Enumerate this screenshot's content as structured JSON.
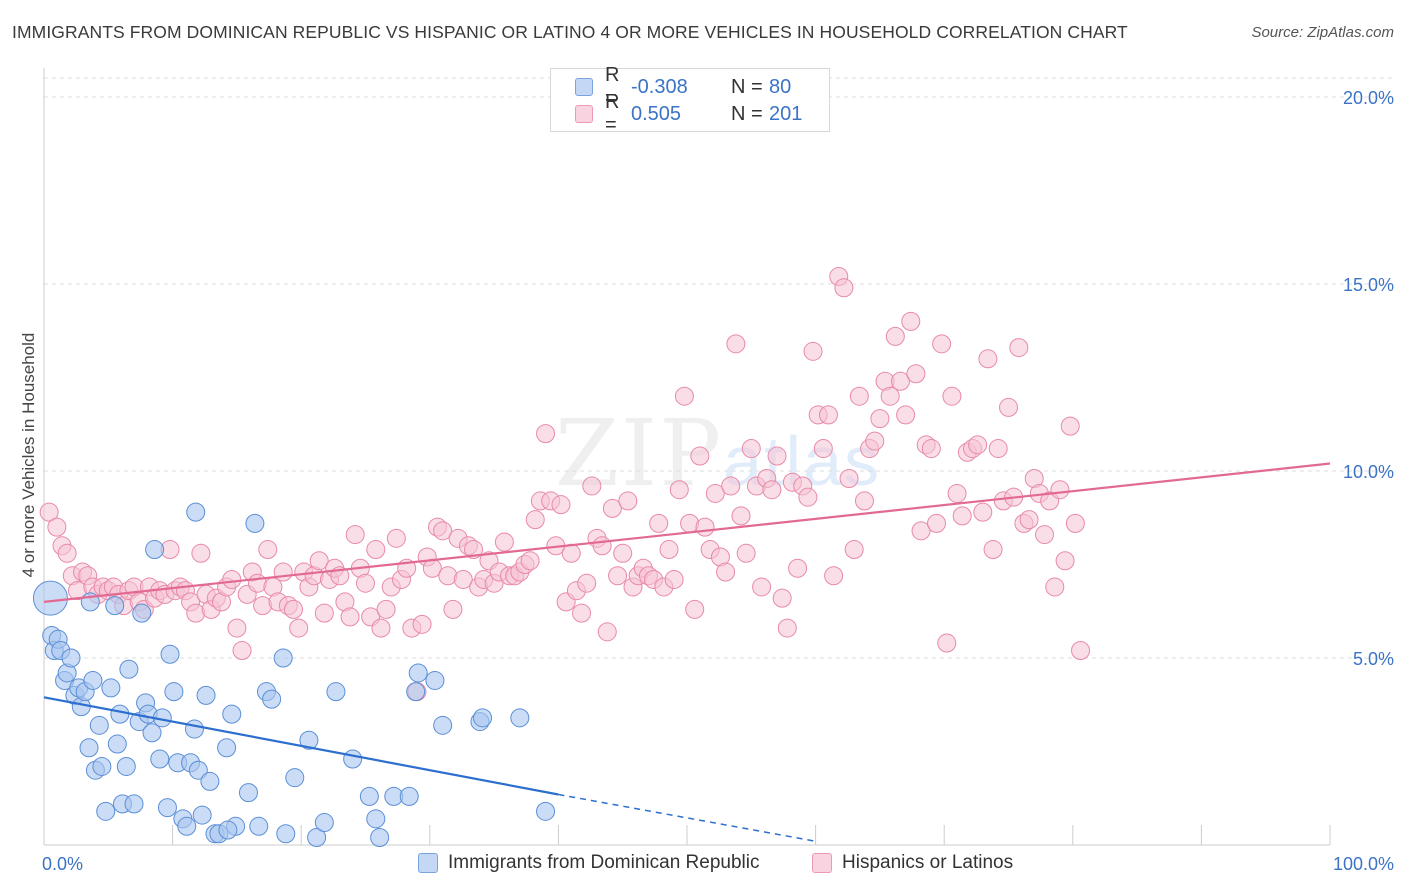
{
  "title": "IMMIGRANTS FROM DOMINICAN REPUBLIC VS HISPANIC OR LATINO 4 OR MORE VEHICLES IN HOUSEHOLD CORRELATION CHART",
  "source": "Source: ZipAtlas.com",
  "watermark": {
    "zip": "ZIP",
    "atlas": "atlas"
  },
  "legend": {
    "rows": [
      {
        "r_label": "R =",
        "r_value": "-0.308",
        "n_label": "N =",
        "n_value": "80"
      },
      {
        "r_label": "R =",
        "r_value": "0.505",
        "n_label": "N =",
        "n_value": "201"
      }
    ]
  },
  "bottom_legend": {
    "blue": "Immigrants from Dominican Republic",
    "pink": "Hispanics or Latinos"
  },
  "colors": {
    "blue_fill": "#a9c7f0",
    "blue_stroke": "#5b8fd6",
    "blue_line": "#2d6fcf",
    "pink_fill": "#f6c3d3",
    "pink_stroke": "#e88aa8",
    "pink_line": "#e26a92",
    "axis_text": "#3b73c7",
    "grid": "#dddddd"
  },
  "chart_data": {
    "type": "scatter",
    "title": "IMMIGRANTS FROM DOMINICAN REPUBLIC VS HISPANIC OR LATINO 4 OR MORE VEHICLES IN HOUSEHOLD CORRELATION CHART",
    "xlabel": "",
    "ylabel": "4 or more Vehicles in Household",
    "xlim": [
      0,
      100
    ],
    "ylim": [
      0,
      20
    ],
    "x_tick_labels": [
      "0.0%",
      "100.0%"
    ],
    "y_ticks": [
      5,
      10,
      15,
      20
    ],
    "y_tick_labels": [
      "5.0%",
      "10.0%",
      "15.0%",
      "20.0%"
    ],
    "grid": true,
    "legend_position": "top-center",
    "series": [
      {
        "name": "Immigrants from Dominican Republic",
        "color": "blue",
        "r": -0.308,
        "n": 80,
        "trend": {
          "x": [
            0,
            40
          ],
          "y": [
            3.95,
            1.35
          ],
          "dashed_to": [
            60,
            0.1
          ]
        },
        "points": [
          [
            0.5,
            6.6
          ],
          [
            0.6,
            5.6
          ],
          [
            0.8,
            5.2
          ],
          [
            1.1,
            5.5
          ],
          [
            1.3,
            5.2
          ],
          [
            1.6,
            4.4
          ],
          [
            1.8,
            4.6
          ],
          [
            2.1,
            5.0
          ],
          [
            2.4,
            4.0
          ],
          [
            2.7,
            4.2
          ],
          [
            2.9,
            3.7
          ],
          [
            3.2,
            4.1
          ],
          [
            3.5,
            2.6
          ],
          [
            3.6,
            6.5
          ],
          [
            3.8,
            4.4
          ],
          [
            4.0,
            2.0
          ],
          [
            4.3,
            3.2
          ],
          [
            4.5,
            2.1
          ],
          [
            4.8,
            0.9
          ],
          [
            5.2,
            4.2
          ],
          [
            5.5,
            6.4
          ],
          [
            5.7,
            2.7
          ],
          [
            5.9,
            3.5
          ],
          [
            6.1,
            1.1
          ],
          [
            6.4,
            2.1
          ],
          [
            6.6,
            4.7
          ],
          [
            7.0,
            1.1
          ],
          [
            7.4,
            3.3
          ],
          [
            7.6,
            6.2
          ],
          [
            7.9,
            3.8
          ],
          [
            8.1,
            3.5
          ],
          [
            8.4,
            3.0
          ],
          [
            8.6,
            7.9
          ],
          [
            9.0,
            2.3
          ],
          [
            9.2,
            3.4
          ],
          [
            9.6,
            1.0
          ],
          [
            9.8,
            5.1
          ],
          [
            10.1,
            4.1
          ],
          [
            10.4,
            2.2
          ],
          [
            10.8,
            0.7
          ],
          [
            11.1,
            0.5
          ],
          [
            11.4,
            2.2
          ],
          [
            11.7,
            3.1
          ],
          [
            12.0,
            2.0
          ],
          [
            12.3,
            0.8
          ],
          [
            12.6,
            4.0
          ],
          [
            12.9,
            1.7
          ],
          [
            13.3,
            0.3
          ],
          [
            13.6,
            0.3
          ],
          [
            14.2,
            2.6
          ],
          [
            14.6,
            3.5
          ],
          [
            14.9,
            0.5
          ],
          [
            15.9,
            1.4
          ],
          [
            16.4,
            8.6
          ],
          [
            16.7,
            0.5
          ],
          [
            17.3,
            4.1
          ],
          [
            17.7,
            3.9
          ],
          [
            18.6,
            5.0
          ],
          [
            18.8,
            0.3
          ],
          [
            19.5,
            1.8
          ],
          [
            20.6,
            2.8
          ],
          [
            21.2,
            0.2
          ],
          [
            21.8,
            0.6
          ],
          [
            22.7,
            4.1
          ],
          [
            24.0,
            2.3
          ],
          [
            25.3,
            1.3
          ],
          [
            25.8,
            0.7
          ],
          [
            26.1,
            0.2
          ],
          [
            27.2,
            1.3
          ],
          [
            28.4,
            1.3
          ],
          [
            28.9,
            4.1
          ],
          [
            29.1,
            4.6
          ],
          [
            30.4,
            4.4
          ],
          [
            33.9,
            3.3
          ],
          [
            34.1,
            3.4
          ],
          [
            37.0,
            3.4
          ],
          [
            39.0,
            0.9
          ],
          [
            11.8,
            8.9
          ],
          [
            14.3,
            0.4
          ],
          [
            31.0,
            3.2
          ]
        ]
      },
      {
        "name": "Hispanics or Latinos",
        "color": "pink",
        "r": 0.505,
        "n": 201,
        "trend": {
          "x": [
            0,
            100
          ],
          "y": [
            6.5,
            10.2
          ]
        },
        "points": [
          [
            0.4,
            8.9
          ],
          [
            1.0,
            8.5
          ],
          [
            1.4,
            8.0
          ],
          [
            1.8,
            7.8
          ],
          [
            2.2,
            7.2
          ],
          [
            2.6,
            6.8
          ],
          [
            3.0,
            7.3
          ],
          [
            3.4,
            7.2
          ],
          [
            3.8,
            6.9
          ],
          [
            4.2,
            6.7
          ],
          [
            4.6,
            6.9
          ],
          [
            5.0,
            6.8
          ],
          [
            5.4,
            6.9
          ],
          [
            5.8,
            6.7
          ],
          [
            6.2,
            6.4
          ],
          [
            6.6,
            6.8
          ],
          [
            7.0,
            6.9
          ],
          [
            7.4,
            6.5
          ],
          [
            7.8,
            6.3
          ],
          [
            8.2,
            6.9
          ],
          [
            8.6,
            6.6
          ],
          [
            9.0,
            6.8
          ],
          [
            9.4,
            6.7
          ],
          [
            9.8,
            7.9
          ],
          [
            10.2,
            6.8
          ],
          [
            10.6,
            6.9
          ],
          [
            11.0,
            6.8
          ],
          [
            11.4,
            6.5
          ],
          [
            11.8,
            6.2
          ],
          [
            12.2,
            7.8
          ],
          [
            12.6,
            6.7
          ],
          [
            13.0,
            6.3
          ],
          [
            13.4,
            6.6
          ],
          [
            13.8,
            6.5
          ],
          [
            14.2,
            6.9
          ],
          [
            14.6,
            7.1
          ],
          [
            15.0,
            5.8
          ],
          [
            15.4,
            5.2
          ],
          [
            15.8,
            6.7
          ],
          [
            16.2,
            7.3
          ],
          [
            16.6,
            7.0
          ],
          [
            17.0,
            6.4
          ],
          [
            17.4,
            7.9
          ],
          [
            17.8,
            6.9
          ],
          [
            18.2,
            6.5
          ],
          [
            18.6,
            7.3
          ],
          [
            19.0,
            6.4
          ],
          [
            19.4,
            6.3
          ],
          [
            19.8,
            5.8
          ],
          [
            20.2,
            7.3
          ],
          [
            20.6,
            6.9
          ],
          [
            21.0,
            7.2
          ],
          [
            21.4,
            7.6
          ],
          [
            21.8,
            6.2
          ],
          [
            22.2,
            7.1
          ],
          [
            22.6,
            7.4
          ],
          [
            23.0,
            7.2
          ],
          [
            23.4,
            6.5
          ],
          [
            23.8,
            6.1
          ],
          [
            24.2,
            8.3
          ],
          [
            24.6,
            7.4
          ],
          [
            25.0,
            7.0
          ],
          [
            25.4,
            6.1
          ],
          [
            25.8,
            7.9
          ],
          [
            26.2,
            5.8
          ],
          [
            26.6,
            6.3
          ],
          [
            27.0,
            6.9
          ],
          [
            27.4,
            8.2
          ],
          [
            27.8,
            7.1
          ],
          [
            28.2,
            7.4
          ],
          [
            28.6,
            5.8
          ],
          [
            29.0,
            4.1
          ],
          [
            29.4,
            5.9
          ],
          [
            29.8,
            7.7
          ],
          [
            30.2,
            7.4
          ],
          [
            30.6,
            8.5
          ],
          [
            31.0,
            8.4
          ],
          [
            31.4,
            7.2
          ],
          [
            31.8,
            6.3
          ],
          [
            32.2,
            8.2
          ],
          [
            32.6,
            7.1
          ],
          [
            33.0,
            8.0
          ],
          [
            33.4,
            7.9
          ],
          [
            33.8,
            6.9
          ],
          [
            34.2,
            7.1
          ],
          [
            34.6,
            7.6
          ],
          [
            35.0,
            7.0
          ],
          [
            35.4,
            7.3
          ],
          [
            35.8,
            8.1
          ],
          [
            36.2,
            7.2
          ],
          [
            36.6,
            7.2
          ],
          [
            37.0,
            7.3
          ],
          [
            37.4,
            7.5
          ],
          [
            37.8,
            7.6
          ],
          [
            38.2,
            8.7
          ],
          [
            38.6,
            9.2
          ],
          [
            39.0,
            11.0
          ],
          [
            39.4,
            9.2
          ],
          [
            39.8,
            8.0
          ],
          [
            40.2,
            9.1
          ],
          [
            40.6,
            6.5
          ],
          [
            41.0,
            7.8
          ],
          [
            41.4,
            6.8
          ],
          [
            41.8,
            6.2
          ],
          [
            42.2,
            7.0
          ],
          [
            42.6,
            9.6
          ],
          [
            43.0,
            8.2
          ],
          [
            43.4,
            8.0
          ],
          [
            43.8,
            5.7
          ],
          [
            44.2,
            9.0
          ],
          [
            44.6,
            7.2
          ],
          [
            45.0,
            7.8
          ],
          [
            45.4,
            9.2
          ],
          [
            45.8,
            6.9
          ],
          [
            46.2,
            7.2
          ],
          [
            46.6,
            7.4
          ],
          [
            47.0,
            7.2
          ],
          [
            47.4,
            7.1
          ],
          [
            47.8,
            8.6
          ],
          [
            48.2,
            6.9
          ],
          [
            48.6,
            7.9
          ],
          [
            49.0,
            7.1
          ],
          [
            49.4,
            9.5
          ],
          [
            49.8,
            12.0
          ],
          [
            50.2,
            8.6
          ],
          [
            50.6,
            6.3
          ],
          [
            51.0,
            10.4
          ],
          [
            51.4,
            8.5
          ],
          [
            51.8,
            7.9
          ],
          [
            52.2,
            9.4
          ],
          [
            52.6,
            7.7
          ],
          [
            53.0,
            7.3
          ],
          [
            53.4,
            9.6
          ],
          [
            53.8,
            13.4
          ],
          [
            54.2,
            8.8
          ],
          [
            54.6,
            7.8
          ],
          [
            55.0,
            10.6
          ],
          [
            55.4,
            9.6
          ],
          [
            55.8,
            6.9
          ],
          [
            56.2,
            9.8
          ],
          [
            56.6,
            9.5
          ],
          [
            57.0,
            10.4
          ],
          [
            57.4,
            6.6
          ],
          [
            57.8,
            5.8
          ],
          [
            58.2,
            9.7
          ],
          [
            58.6,
            7.4
          ],
          [
            59.0,
            9.6
          ],
          [
            59.4,
            9.3
          ],
          [
            59.8,
            13.2
          ],
          [
            60.2,
            11.5
          ],
          [
            60.6,
            10.6
          ],
          [
            61.0,
            11.5
          ],
          [
            61.4,
            7.2
          ],
          [
            61.8,
            15.2
          ],
          [
            62.2,
            14.9
          ],
          [
            62.6,
            9.8
          ],
          [
            63.0,
            7.9
          ],
          [
            63.4,
            12.0
          ],
          [
            63.8,
            9.2
          ],
          [
            64.2,
            10.6
          ],
          [
            64.6,
            10.8
          ],
          [
            65.0,
            11.4
          ],
          [
            65.4,
            12.4
          ],
          [
            65.8,
            12.0
          ],
          [
            66.2,
            13.6
          ],
          [
            66.6,
            12.4
          ],
          [
            67.0,
            11.5
          ],
          [
            67.4,
            14.0
          ],
          [
            67.8,
            12.6
          ],
          [
            68.2,
            8.4
          ],
          [
            68.6,
            10.7
          ],
          [
            69.0,
            10.6
          ],
          [
            69.4,
            8.6
          ],
          [
            69.8,
            13.4
          ],
          [
            70.2,
            5.4
          ],
          [
            70.6,
            12.0
          ],
          [
            71.0,
            9.4
          ],
          [
            71.4,
            8.8
          ],
          [
            71.8,
            10.5
          ],
          [
            72.2,
            10.6
          ],
          [
            72.6,
            10.7
          ],
          [
            73.0,
            8.9
          ],
          [
            73.4,
            13.0
          ],
          [
            73.8,
            7.9
          ],
          [
            74.2,
            10.6
          ],
          [
            74.6,
            9.2
          ],
          [
            75.0,
            11.7
          ],
          [
            75.4,
            9.3
          ],
          [
            75.8,
            13.3
          ],
          [
            76.2,
            8.6
          ],
          [
            76.6,
            8.7
          ],
          [
            77.0,
            9.8
          ],
          [
            77.4,
            9.4
          ],
          [
            77.8,
            8.3
          ],
          [
            78.2,
            9.2
          ],
          [
            78.6,
            6.9
          ],
          [
            79.0,
            9.5
          ],
          [
            79.4,
            7.6
          ],
          [
            79.8,
            11.2
          ],
          [
            80.2,
            8.6
          ],
          [
            80.6,
            5.2
          ]
        ]
      }
    ]
  }
}
